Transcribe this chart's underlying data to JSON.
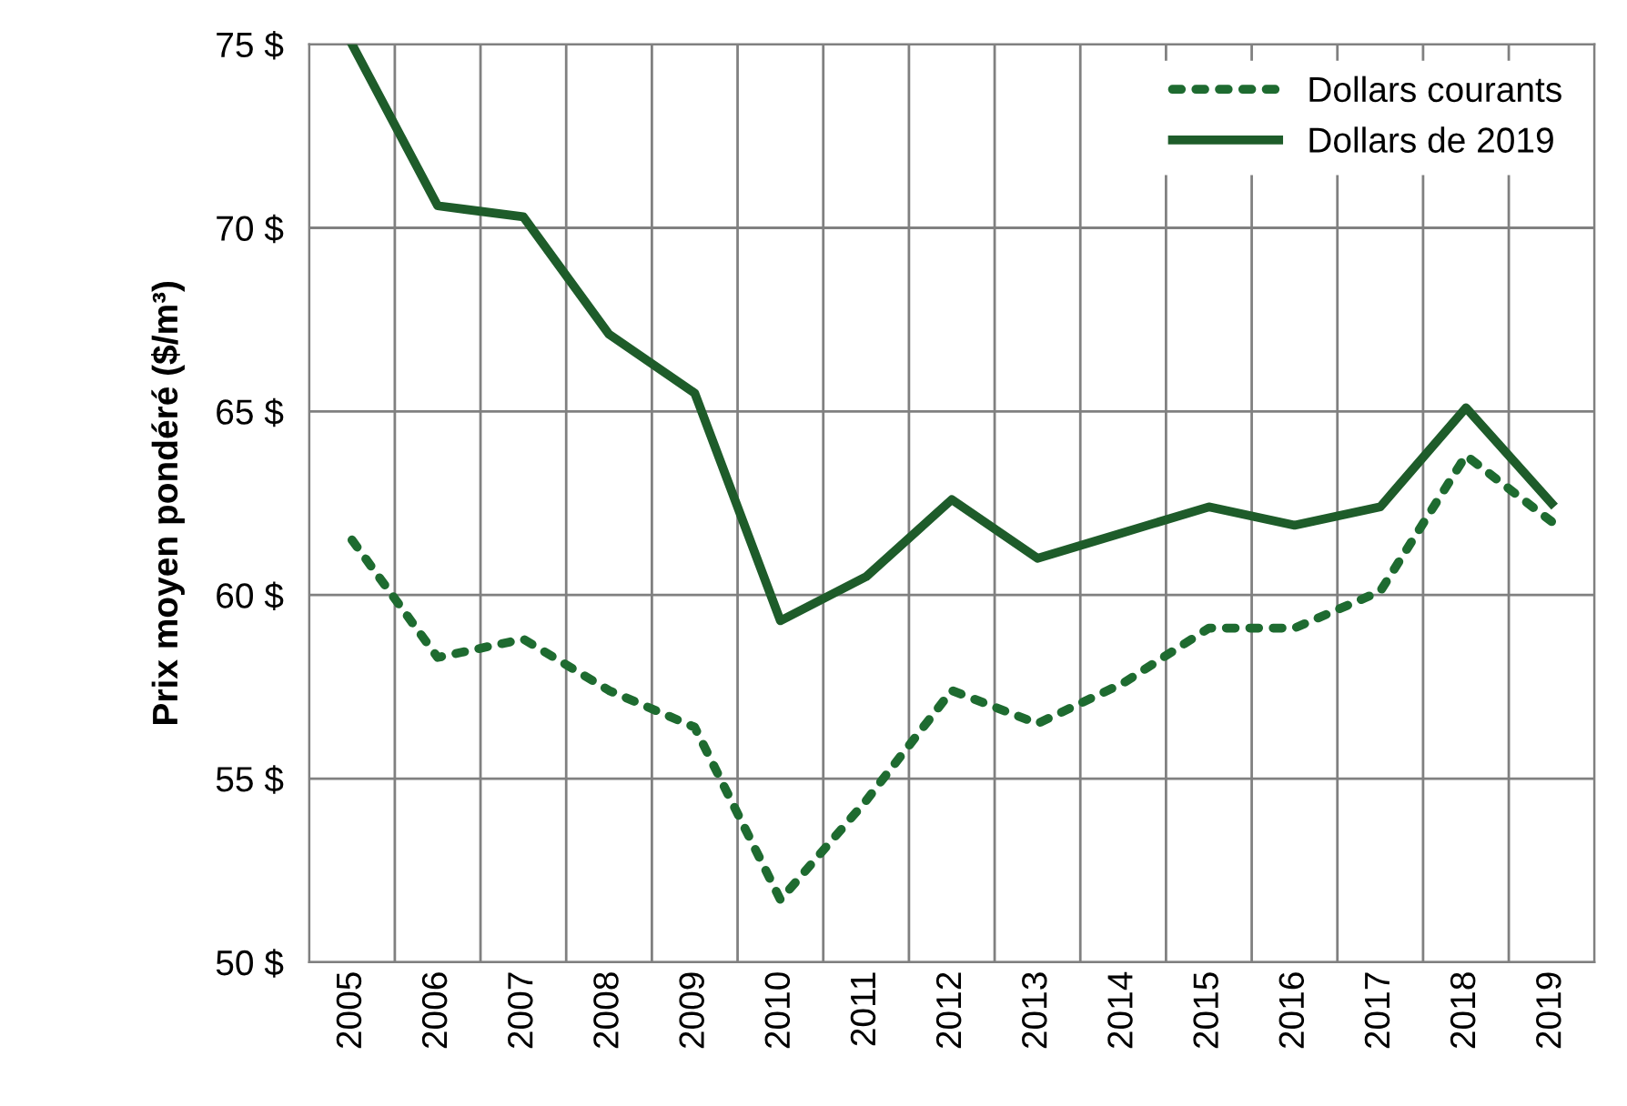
{
  "chart_data": {
    "type": "line",
    "ylabel": "Prix moyen pondéré ($/m³)",
    "categories": [
      "2005",
      "2006",
      "2007",
      "2008",
      "2009",
      "2010",
      "2011",
      "2012",
      "2013",
      "2014",
      "2015",
      "2016",
      "2017",
      "2018",
      "2019"
    ],
    "series": [
      {
        "name": "Dollars courants",
        "color": "#1e6b30",
        "line_style": "dotted",
        "values": [
          61.5,
          58.3,
          58.8,
          57.4,
          56.4,
          51.7,
          54.4,
          57.4,
          56.5,
          57.6,
          59.1,
          59.1,
          60.1,
          63.8,
          62.0
        ]
      },
      {
        "name": "Dollars de 2019",
        "color": "#1e5c2a",
        "line_style": "solid",
        "values": [
          75.0,
          70.6,
          70.3,
          67.1,
          65.5,
          59.3,
          60.5,
          62.6,
          61.0,
          61.7,
          62.4,
          61.9,
          62.4,
          65.1,
          62.5
        ]
      }
    ],
    "ylim": [
      50,
      75
    ],
    "yticks": [
      {
        "value": 50,
        "label": "50 $"
      },
      {
        "value": 55,
        "label": "55 $"
      },
      {
        "value": 60,
        "label": "60 $"
      },
      {
        "value": 65,
        "label": "65 $"
      },
      {
        "value": 70,
        "label": "70 $"
      },
      {
        "value": 75,
        "label": "75 $"
      }
    ],
    "grid": true,
    "legend": "top right",
    "marker": "none"
  }
}
